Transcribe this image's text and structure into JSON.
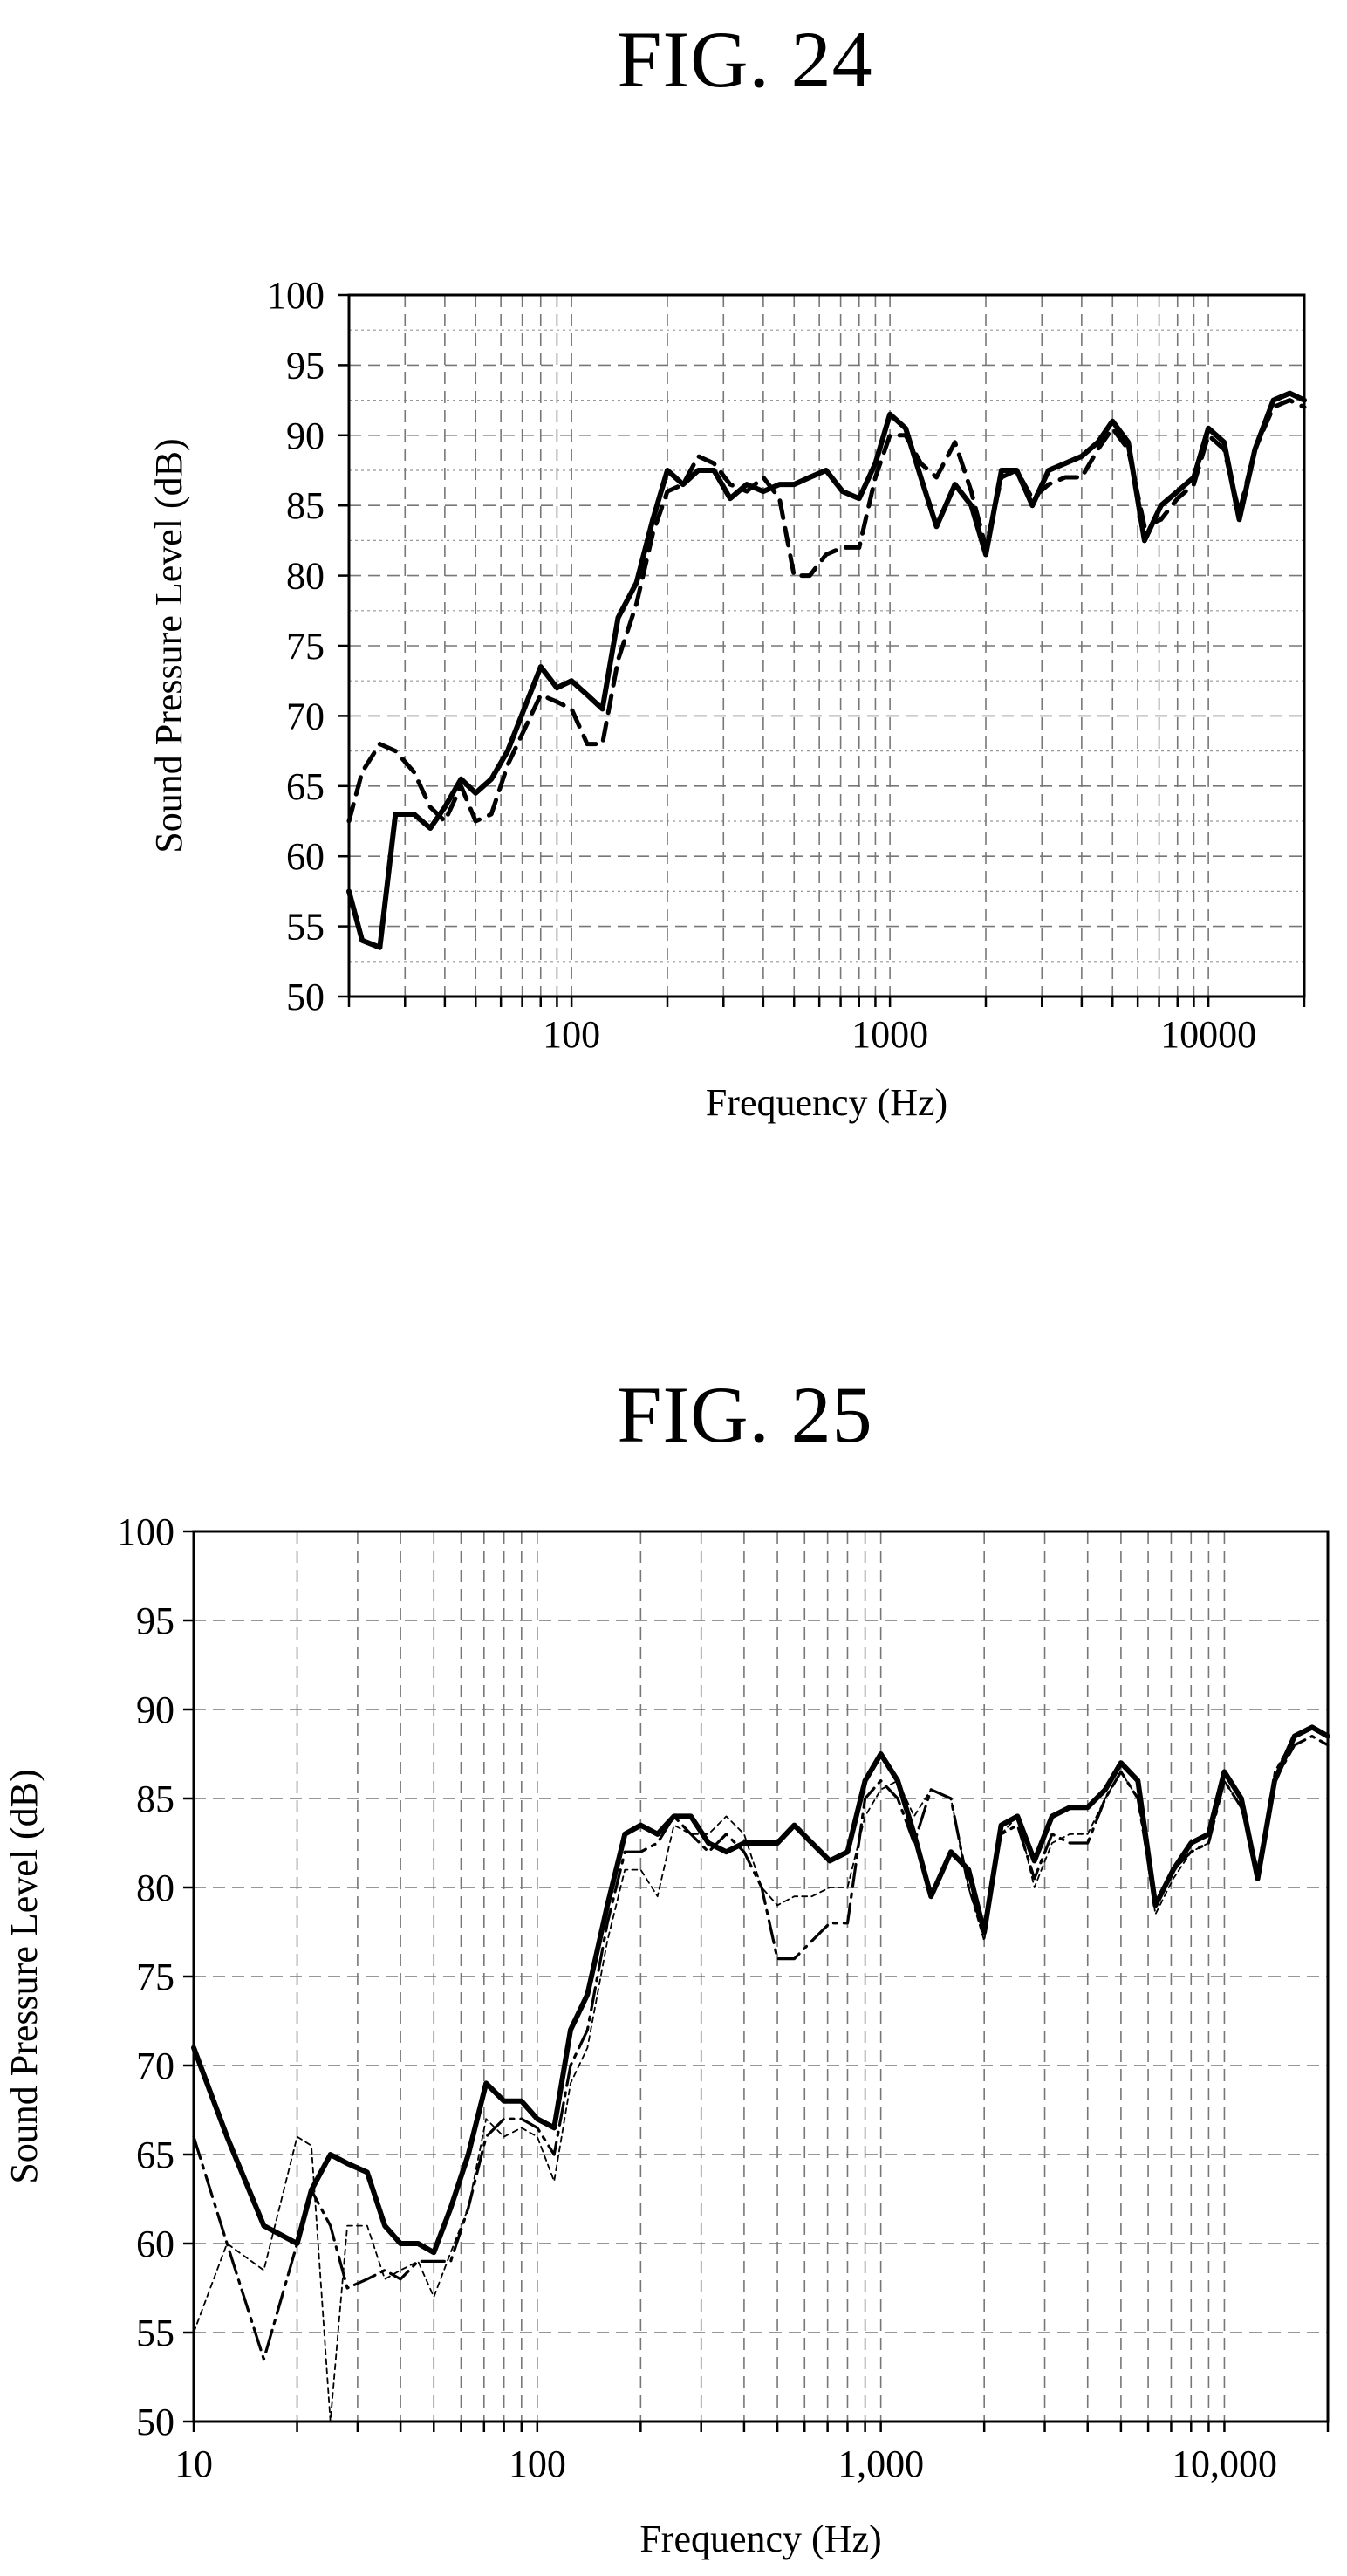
{
  "chart_data": [
    {
      "type": "line",
      "title": "FIG. 24",
      "xlabel": "Frequency (Hz)",
      "ylabel": "Sound Pressure Level (dB)",
      "xscale": "log",
      "xlim": [
        20,
        20000
      ],
      "ylim": [
        50,
        100
      ],
      "yticks": [
        50,
        55,
        60,
        65,
        70,
        75,
        80,
        85,
        90,
        95,
        100
      ],
      "xticks": [
        100,
        1000,
        10000
      ],
      "xtick_labels": [
        "100",
        "1000",
        "10000"
      ],
      "grid": true,
      "series": [
        {
          "style": "solid-thick",
          "x": [
            20,
            22,
            25,
            28,
            32,
            36,
            40,
            45,
            50,
            56,
            63,
            71,
            80,
            90,
            100,
            112,
            125,
            140,
            160,
            180,
            200,
            224,
            250,
            280,
            315,
            355,
            400,
            450,
            500,
            560,
            630,
            710,
            800,
            900,
            1000,
            1120,
            1250,
            1400,
            1600,
            1800,
            2000,
            2240,
            2500,
            2800,
            3150,
            3550,
            4000,
            4500,
            5000,
            5600,
            6300,
            7100,
            8000,
            9000,
            10000,
            11200,
            12500,
            14000,
            16000,
            18000,
            20000
          ],
          "y": [
            57.5,
            54,
            53.5,
            63,
            63,
            62,
            63.5,
            65.5,
            64.5,
            65.5,
            67.5,
            70.5,
            73.5,
            72,
            72.5,
            71.5,
            70.5,
            77,
            79.5,
            84,
            87.5,
            86.5,
            87.5,
            87.5,
            85.5,
            86.5,
            86,
            86.5,
            86.5,
            87,
            87.5,
            86,
            85.5,
            88,
            91.5,
            90.5,
            87,
            83.5,
            86.5,
            85,
            81.5,
            87.5,
            87.5,
            85,
            87.5,
            88,
            88.5,
            89.5,
            91,
            89.5,
            82.5,
            85,
            86,
            87,
            90.5,
            89.5,
            84,
            89,
            92.5,
            93,
            92.5
          ]
        },
        {
          "style": "dashed-thick",
          "x": [
            20,
            22,
            25,
            28,
            32,
            36,
            40,
            45,
            50,
            56,
            63,
            71,
            80,
            90,
            100,
            112,
            125,
            140,
            160,
            180,
            200,
            224,
            250,
            280,
            315,
            355,
            400,
            450,
            500,
            560,
            630,
            710,
            800,
            900,
            1000,
            1120,
            1250,
            1400,
            1600,
            1800,
            2000,
            2240,
            2500,
            2800,
            3150,
            3550,
            4000,
            4500,
            5000,
            5600,
            6300,
            7100,
            8000,
            9000,
            10000,
            11200,
            12500,
            14000,
            16000,
            18000,
            20000
          ],
          "y": [
            62.5,
            66,
            68,
            67.5,
            66,
            63.5,
            62.5,
            65,
            62.5,
            63,
            66.5,
            69,
            71.5,
            71,
            70.5,
            68,
            68,
            74,
            78,
            83,
            86,
            86.5,
            88.5,
            88,
            86.5,
            86,
            87,
            85.5,
            80,
            80,
            81.5,
            82,
            82,
            87,
            90,
            90,
            88,
            87,
            89.5,
            86,
            82,
            87,
            87.5,
            85.5,
            86.5,
            87,
            87,
            89,
            90.5,
            89,
            83.5,
            84,
            85.5,
            86.5,
            90,
            89,
            84.5,
            89,
            92,
            92.5,
            92
          ]
        }
      ]
    },
    {
      "type": "line",
      "title": "FIG. 25",
      "xlabel": "Frequency (Hz)",
      "ylabel": "Sound Pressure Level (dB)",
      "xscale": "log",
      "xlim": [
        10,
        20000
      ],
      "ylim": [
        50,
        100
      ],
      "yticks": [
        50,
        55,
        60,
        65,
        70,
        75,
        80,
        85,
        90,
        95,
        100
      ],
      "xticks": [
        10,
        100,
        1000,
        10000
      ],
      "xtick_labels": [
        "10",
        "100",
        "1,000",
        "10,000"
      ],
      "grid": true,
      "series": [
        {
          "style": "solid-thick",
          "x": [
            10,
            12.5,
            16,
            20,
            22,
            25,
            28,
            32,
            36,
            40,
            45,
            50,
            56,
            63,
            71,
            80,
            90,
            100,
            112,
            125,
            140,
            160,
            180,
            200,
            224,
            250,
            280,
            315,
            355,
            400,
            450,
            500,
            560,
            630,
            710,
            800,
            900,
            1000,
            1120,
            1250,
            1400,
            1600,
            1800,
            2000,
            2240,
            2500,
            2800,
            3150,
            3550,
            4000,
            4500,
            5000,
            5600,
            6300,
            7100,
            8000,
            9000,
            10000,
            11200,
            12500,
            14000,
            16000,
            18000,
            20000
          ],
          "y": [
            71,
            66,
            61,
            60,
            63,
            65,
            64.5,
            64,
            61,
            60,
            60,
            59.5,
            62,
            65,
            69,
            68,
            68,
            67,
            66.5,
            72,
            74,
            79,
            83,
            83.5,
            83,
            84,
            84,
            82.5,
            82,
            82.5,
            82.5,
            82.5,
            83.5,
            82.5,
            81.5,
            82,
            86,
            87.5,
            86,
            83,
            79.5,
            82,
            81,
            77.5,
            83.5,
            84,
            81.5,
            84,
            84.5,
            84.5,
            85.5,
            87,
            86,
            79,
            81,
            82.5,
            83,
            86.5,
            85,
            80.5,
            86,
            88.5,
            89,
            88.5
          ]
        },
        {
          "style": "dash-dot",
          "x": [
            10,
            12.5,
            16,
            20,
            22,
            25,
            28,
            32,
            36,
            40,
            45,
            50,
            56,
            63,
            71,
            80,
            90,
            100,
            112,
            125,
            140,
            160,
            180,
            200,
            224,
            250,
            280,
            315,
            355,
            400,
            450,
            500,
            560,
            630,
            710,
            800,
            900,
            1000,
            1120,
            1250,
            1400,
            1600,
            1800,
            2000,
            2240,
            2500,
            2800,
            3150,
            3550,
            4000,
            4500,
            5000,
            5600,
            6300,
            7100,
            8000,
            9000,
            10000,
            11200,
            12500,
            14000,
            16000,
            18000,
            20000
          ],
          "y": [
            66,
            60,
            53.5,
            60,
            63,
            61,
            57.5,
            58,
            58.5,
            58,
            59,
            59,
            59,
            62,
            66,
            67,
            67,
            66.5,
            65,
            70,
            72,
            78,
            82,
            82,
            82.5,
            84,
            83,
            82,
            83,
            82,
            80,
            76,
            76,
            77,
            78,
            78,
            85,
            86,
            85,
            82.5,
            85.5,
            85,
            80,
            77.5,
            83,
            83.5,
            80.5,
            83,
            82.5,
            82.5,
            85,
            86.5,
            85,
            79,
            81,
            82,
            82.5,
            86,
            84.5,
            81,
            86,
            88,
            88.5,
            88
          ]
        },
        {
          "style": "dotted-thin",
          "x": [
            10,
            12.5,
            16,
            20,
            22,
            25,
            28,
            32,
            36,
            40,
            45,
            50,
            56,
            63,
            71,
            80,
            90,
            100,
            112,
            125,
            140,
            160,
            180,
            200,
            224,
            250,
            280,
            315,
            355,
            400,
            450,
            500,
            560,
            630,
            710,
            800,
            900,
            1000,
            1120,
            1250,
            1400,
            1600,
            1800,
            2000,
            2240,
            2500,
            2800,
            3150,
            3550,
            4000,
            4500,
            5000,
            5600,
            6300,
            7100,
            8000,
            9000,
            10000,
            11200,
            12500,
            14000,
            16000,
            18000,
            20000
          ],
          "y": [
            55,
            60,
            58.5,
            66,
            65.5,
            50,
            61,
            61,
            58,
            58.5,
            59,
            57,
            59.5,
            62,
            67,
            66,
            66.5,
            66,
            63.5,
            69,
            71,
            77,
            81,
            81,
            79.5,
            83.5,
            83,
            83,
            84,
            83,
            80,
            79,
            79.5,
            79.5,
            80,
            80,
            84,
            85.5,
            86,
            84,
            85.5,
            85,
            80,
            77,
            83,
            84,
            80,
            82.5,
            83,
            83,
            85,
            86.5,
            85,
            78.5,
            80.5,
            82,
            82.5,
            86,
            84.5,
            81,
            86.5,
            88.5,
            89,
            88.5
          ]
        }
      ]
    }
  ]
}
